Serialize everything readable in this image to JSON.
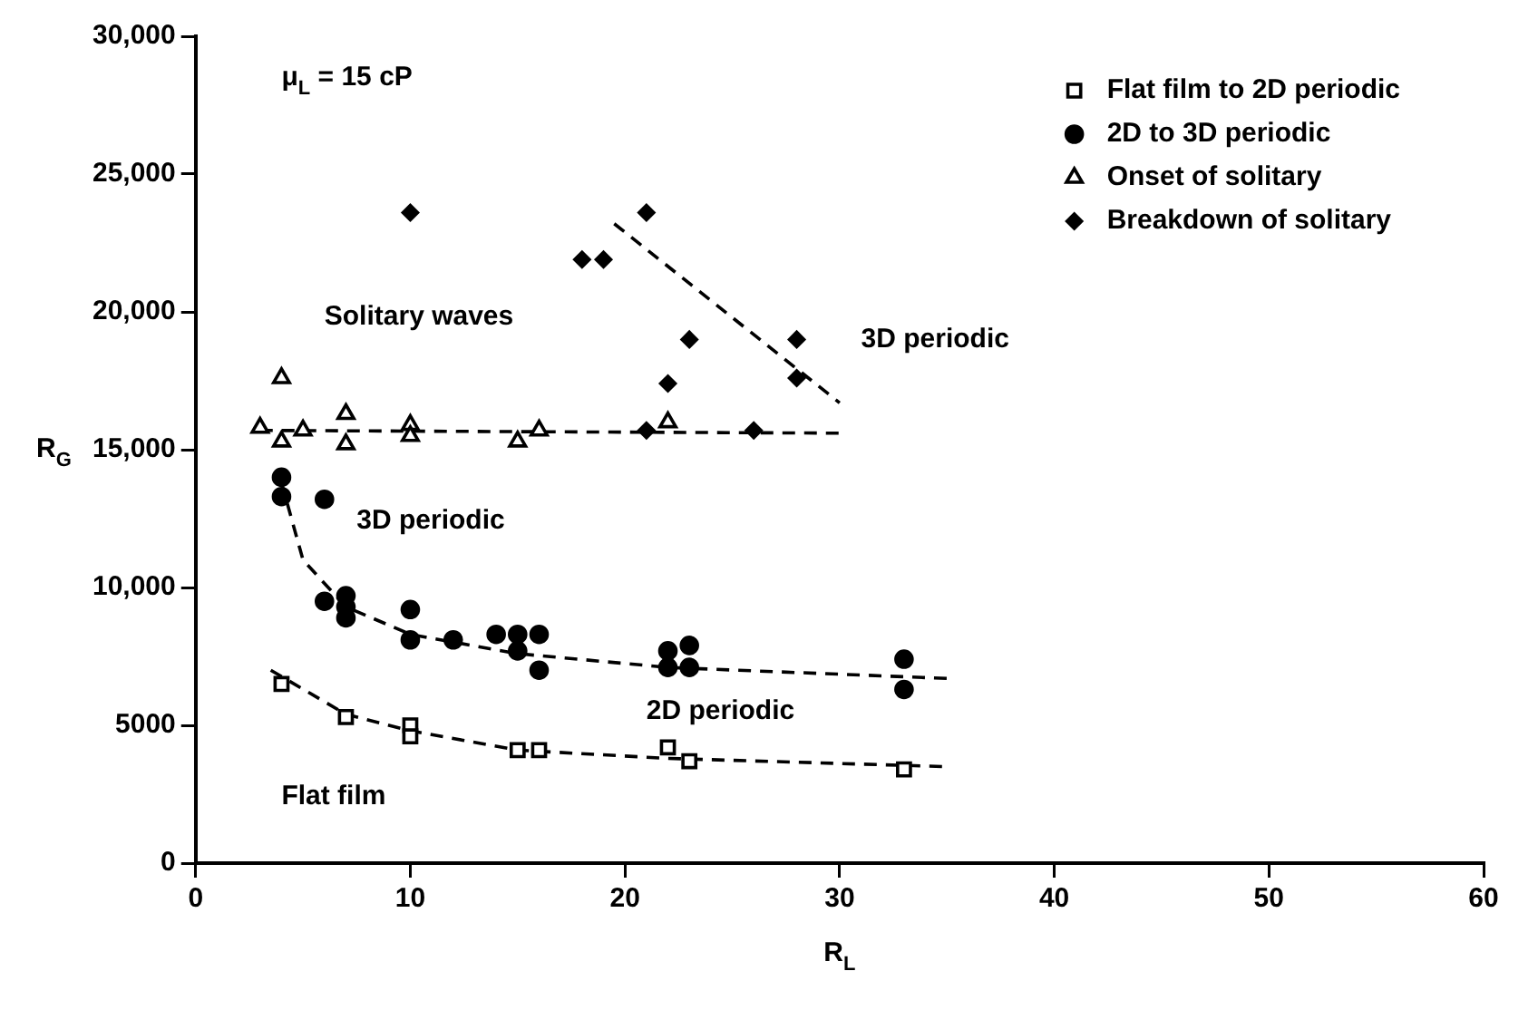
{
  "chart_data": {
    "type": "scatter",
    "xlabel": "R$_{L}$",
    "ylabel": "R$_{G}$",
    "xlim": [
      0,
      60
    ],
    "xticks": [
      0,
      10,
      20,
      30,
      40,
      50,
      60
    ],
    "ylim": [
      0,
      30000
    ],
    "yticks": [
      0,
      5000,
      {
        "value": 10000,
        "label": "10,000"
      },
      {
        "value": 15000,
        "label": "15,000"
      },
      {
        "value": 20000,
        "label": "20,000"
      },
      {
        "value": 25000,
        "label": "25,000"
      },
      {
        "value": 30000,
        "label": "30,000"
      }
    ],
    "grid": false,
    "legend": "top right",
    "annotations": [
      "μ$_{L}$ = 15 cP",
      "Solitary waves",
      "3D periodic",
      "3D periodic",
      "2D periodic",
      "Flat film"
    ],
    "series": [
      {
        "name": "Flat film to 2D periodic",
        "color": "#000000",
        "marker": "square",
        "x": [
          4,
          7,
          10,
          10,
          15,
          16,
          22,
          23,
          33
        ],
        "values": [
          6500,
          5300,
          5000,
          4600,
          4100,
          4100,
          4200,
          3700,
          3400
        ]
      },
      {
        "name": "2D to 3D periodic",
        "color": "#000000",
        "marker": "circle",
        "x": [
          4,
          4,
          6,
          6,
          7,
          7,
          7,
          10,
          10,
          12,
          14,
          15,
          15,
          16,
          16,
          22,
          22,
          23,
          23,
          33,
          33
        ],
        "values": [
          14000,
          13300,
          13200,
          9500,
          9700,
          9300,
          8900,
          9200,
          8100,
          8100,
          8300,
          8300,
          7700,
          8300,
          7000,
          7700,
          7100,
          7900,
          7100,
          7400,
          6300
        ]
      },
      {
        "name": "Onset of solitary",
        "color": "#000000",
        "marker": "triangle",
        "x": [
          3,
          4,
          4,
          5,
          7,
          7,
          10,
          10,
          15,
          16,
          22
        ],
        "values": [
          15800,
          17600,
          15300,
          15700,
          16300,
          15200,
          15900,
          15500,
          15300,
          15700,
          16000
        ]
      },
      {
        "name": "Breakdown of solitary",
        "color": "#000000",
        "marker": "diamond",
        "x": [
          10,
          18,
          19,
          21,
          22,
          23,
          28,
          28,
          21,
          26
        ],
        "values": [
          23600,
          21900,
          21900,
          23600,
          17400,
          19000,
          19000,
          17600,
          15700,
          15700
        ]
      },
      {
        "type": "line",
        "color": "#000000",
        "marker": "none",
        "line_style": "dashed",
        "x": [
          3.5,
          7,
          10,
          15,
          22,
          35
        ],
        "values": [
          7000,
          5400,
          4800,
          4100,
          3800,
          3500
        ]
      },
      {
        "type": "line",
        "color": "#000000",
        "marker": "none",
        "line_style": "dashed",
        "x": [
          4,
          5,
          7,
          10,
          15,
          22,
          35
        ],
        "values": [
          13800,
          11000,
          9300,
          8300,
          7600,
          7100,
          6700
        ]
      },
      {
        "type": "line",
        "color": "#000000",
        "marker": "none",
        "line_style": "dashed",
        "x": [
          3,
          30
        ],
        "values": [
          15700,
          15600
        ]
      },
      {
        "type": "line",
        "color": "#000000",
        "marker": "none",
        "line_style": "dashed",
        "x": [
          19.5,
          30
        ],
        "values": [
          23200,
          16700
        ]
      }
    ]
  }
}
